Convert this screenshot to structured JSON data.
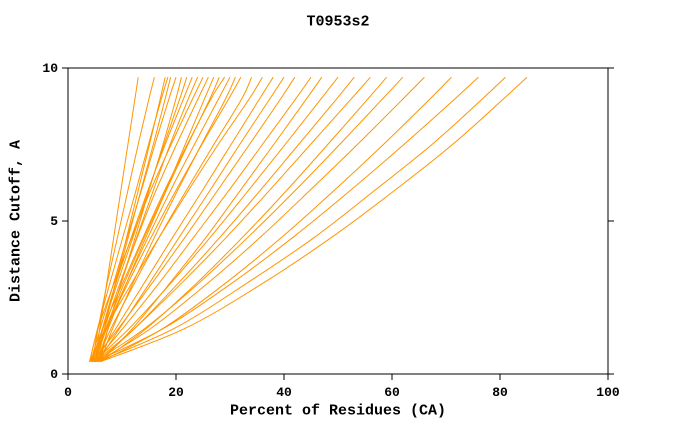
{
  "chart_data": {
    "type": "line",
    "title": "T0953s2",
    "xlabel": "Percent of Residues (CA)",
    "ylabel": "Distance Cutoff, A",
    "xlim": [
      0,
      100
    ],
    "ylim": [
      0,
      10
    ],
    "xticks": [
      0,
      20,
      40,
      60,
      80,
      100
    ],
    "yticks": [
      0,
      5,
      10
    ],
    "grid": "off",
    "legend": "none",
    "line_color": "#FF9500",
    "axis_color": "#000000",
    "background_color": "#FFFFFF",
    "y_samples": [
      0.4,
      1.5,
      3,
      4.5,
      6,
      7.5,
      9,
      9.7
    ],
    "series_x": [
      [
        5,
        5.9,
        7.2,
        8.5,
        9.8,
        11.1,
        12.4,
        13
      ],
      [
        4.5,
        5.6,
        7.3,
        9.2,
        11.1,
        13,
        15,
        16
      ],
      [
        5.5,
        6.8,
        8.8,
        10.9,
        13,
        15.1,
        17.1,
        18
      ],
      [
        4,
        5.5,
        7.8,
        10.2,
        12.6,
        14.9,
        17.3,
        18.5
      ],
      [
        5,
        6.5,
        8.9,
        11.2,
        13.5,
        15.8,
        18,
        19
      ],
      [
        4.2,
        6,
        8.5,
        11,
        13.6,
        16.1,
        18.7,
        20
      ],
      [
        5.8,
        7.4,
        9.9,
        12.5,
        15,
        17.6,
        20,
        21
      ],
      [
        4.5,
        6.4,
        9.2,
        12.1,
        14.9,
        17.8,
        20.7,
        22
      ],
      [
        5,
        6.4,
        8.9,
        11.8,
        14.8,
        18,
        21.4,
        23
      ],
      [
        6,
        7.4,
        9.9,
        12.8,
        15.8,
        18.9,
        22.3,
        24
      ],
      [
        4,
        5.6,
        8.6,
        11.9,
        15.3,
        19.1,
        23.1,
        25
      ],
      [
        5.2,
        6.8,
        9.7,
        12.9,
        16.3,
        20.1,
        24.1,
        26
      ],
      [
        4.8,
        7,
        10.5,
        14.2,
        18.1,
        21.7,
        25.3,
        27
      ],
      [
        5.5,
        7.5,
        10.9,
        14.5,
        18.2,
        22.2,
        26.3,
        28
      ],
      [
        4.3,
        6.5,
        10.2,
        14,
        17.9,
        22.1,
        26.5,
        29
      ],
      [
        5,
        7.2,
        10.9,
        14.9,
        19,
        23.4,
        27.9,
        30
      ],
      [
        6,
        8.3,
        12.1,
        16.1,
        20.3,
        24.7,
        29.2,
        31
      ],
      [
        4.6,
        7.1,
        11.2,
        15.5,
        20,
        24.8,
        29.8,
        32
      ],
      [
        5.3,
        8,
        12.4,
        17,
        21.9,
        27,
        32.2,
        34
      ],
      [
        4,
        7,
        11.9,
        17,
        22.3,
        27.8,
        33.6,
        36
      ],
      [
        5,
        8.9,
        14.2,
        19.5,
        24.9,
        30.2,
        35.5,
        38
      ],
      [
        5.5,
        9.6,
        15.2,
        20.7,
        26.3,
        31.8,
        37.4,
        40
      ],
      [
        4.5,
        9.4,
        15.7,
        21.8,
        27.7,
        33.6,
        39.4,
        42
      ],
      [
        5,
        10.2,
        17,
        23.4,
        29.8,
        36,
        42.2,
        45
      ],
      [
        6,
        12,
        19,
        25.7,
        31.9,
        38.1,
        44.2,
        47
      ],
      [
        4.8,
        11.4,
        19.2,
        26.5,
        33.4,
        40.2,
        46.9,
        50
      ],
      [
        5.5,
        12.4,
        20.6,
        28.3,
        35.6,
        42.7,
        49.8,
        53
      ],
      [
        5,
        12.4,
        21.2,
        29.5,
        37.3,
        44.9,
        52.5,
        56
      ],
      [
        6,
        14.6,
        24,
        32.5,
        40.5,
        48.1,
        55.6,
        59
      ],
      [
        5,
        14.3,
        24.4,
        33.5,
        42.1,
        50.3,
        58.3,
        62
      ],
      [
        5.5,
        15.4,
        26.1,
        35.8,
        44.8,
        53.6,
        62.1,
        66
      ],
      [
        6,
        17.7,
        29.4,
        39.8,
        49.3,
        58.4,
        67.1,
        71
      ],
      [
        5,
        17.8,
        30.6,
        41.9,
        52.3,
        62.2,
        71.7,
        76
      ],
      [
        5.5,
        19.8,
        33.4,
        45.9,
        56.8,
        67.4,
        76.8,
        81
      ],
      [
        6,
        21.8,
        36.4,
        49.1,
        60.5,
        71.2,
        80.7,
        85
      ]
    ]
  }
}
